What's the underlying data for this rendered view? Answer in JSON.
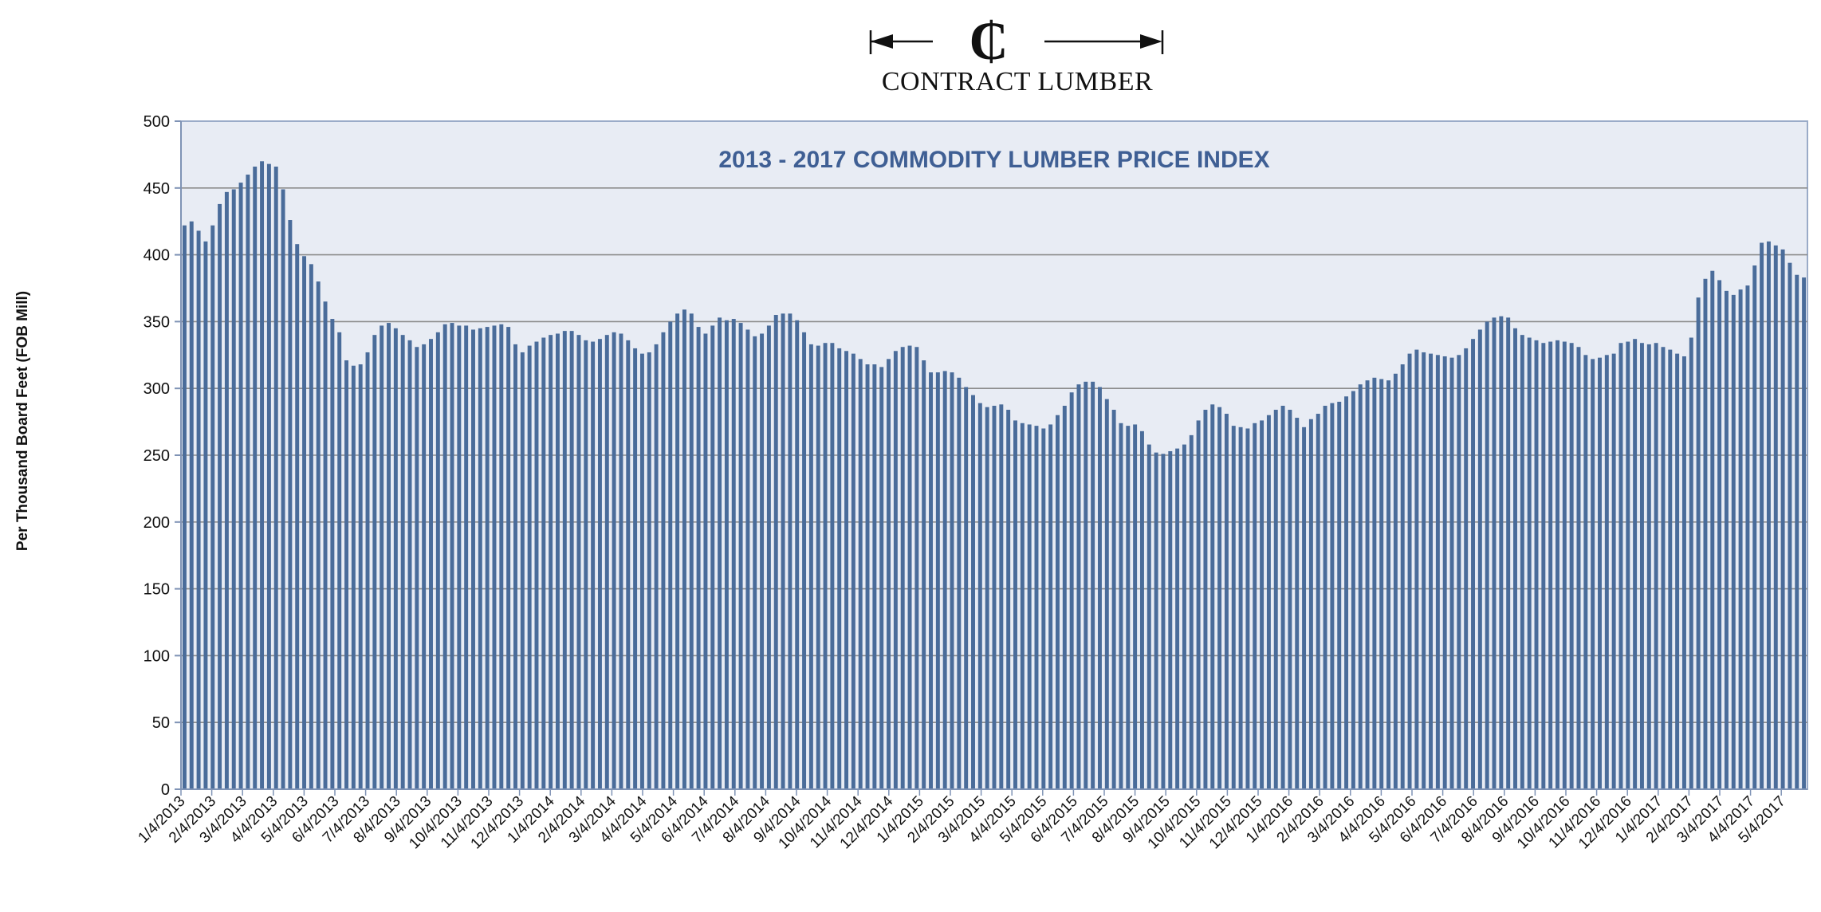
{
  "logo": {
    "symbol": "₵",
    "text": "CONTRACT LUMBER",
    "icon": "cent-arrows-logo"
  },
  "colors": {
    "plot_bg": "#e8ecf4",
    "bar": "#4a6c9a",
    "grid": "#8c8c8c",
    "title": "#3f5f94",
    "axis": "#7f93b5"
  },
  "chart_data": {
    "type": "bar",
    "title": "2013 - 2017 COMMODITY LUMBER PRICE INDEX",
    "xlabel": "",
    "ylabel": "Per Thousand Board Feet (FOB Mill)",
    "ylim": [
      0,
      500
    ],
    "yticks": [
      0,
      50,
      100,
      150,
      200,
      250,
      300,
      350,
      400,
      450,
      500
    ],
    "grid": true,
    "legend": "none",
    "x_tick_labels": [
      "1/4/2013",
      "2/4/2013",
      "3/4/2013",
      "4/4/2013",
      "5/4/2013",
      "6/4/2013",
      "7/4/2013",
      "8/4/2013",
      "9/4/2013",
      "10/4/2013",
      "11/4/2013",
      "12/4/2013",
      "1/4/2014",
      "2/4/2014",
      "3/4/2014",
      "4/4/2014",
      "5/4/2014",
      "6/4/2014",
      "7/4/2014",
      "8/4/2014",
      "9/4/2014",
      "10/4/2014",
      "11/4/2014",
      "12/4/2014",
      "1/4/2015",
      "2/4/2015",
      "3/4/2015",
      "4/4/2015",
      "5/4/2015",
      "6/4/2015",
      "7/4/2015",
      "8/4/2015",
      "9/4/2015",
      "10/4/2015",
      "11/4/2015",
      "12/4/2015",
      "1/4/2016",
      "2/4/2016",
      "3/4/2016",
      "4/4/2016",
      "5/4/2016",
      "6/4/2016",
      "7/4/2016",
      "8/4/2016",
      "9/4/2016",
      "10/4/2016",
      "11/4/2016",
      "12/4/2016",
      "1/4/2017",
      "2/4/2017",
      "3/4/2017",
      "4/4/2017",
      "5/4/2017"
    ],
    "values": [
      422,
      425,
      418,
      410,
      422,
      438,
      447,
      449,
      454,
      460,
      466,
      470,
      468,
      466,
      449,
      426,
      408,
      399,
      393,
      380,
      365,
      352,
      342,
      321,
      317,
      318,
      327,
      340,
      347,
      349,
      345,
      340,
      336,
      331,
      333,
      337,
      342,
      348,
      349,
      347,
      347,
      344,
      345,
      346,
      347,
      348,
      346,
      333,
      327,
      332,
      335,
      338,
      340,
      341,
      343,
      343,
      340,
      336,
      335,
      337,
      340,
      342,
      341,
      336,
      330,
      326,
      327,
      333,
      342,
      350,
      356,
      359,
      356,
      346,
      341,
      347,
      353,
      351,
      352,
      349,
      344,
      339,
      341,
      347,
      355,
      356,
      356,
      351,
      342,
      333,
      332,
      334,
      334,
      330,
      328,
      326,
      322,
      318,
      318,
      316,
      322,
      328,
      331,
      332,
      331,
      321,
      312,
      312,
      313,
      312,
      308,
      301,
      295,
      289,
      286,
      287,
      288,
      284,
      276,
      274,
      273,
      272,
      270,
      273,
      280,
      287,
      297,
      303,
      305,
      305,
      301,
      292,
      284,
      274,
      272,
      273,
      268,
      258,
      252,
      251,
      253,
      255,
      258,
      265,
      276,
      284,
      288,
      286,
      281,
      272,
      271,
      270,
      274,
      276,
      280,
      284,
      287,
      284,
      278,
      271,
      277,
      281,
      287,
      289,
      290,
      294,
      298,
      303,
      306,
      308,
      307,
      306,
      311,
      318,
      326,
      329,
      327,
      326,
      325,
      324,
      323,
      325,
      330,
      337,
      344,
      350,
      353,
      354,
      353,
      345,
      340,
      338,
      336,
      334,
      335,
      336,
      335,
      334,
      331,
      325,
      322,
      323,
      325,
      326,
      334,
      335,
      337,
      334,
      333,
      334,
      331,
      329,
      326,
      324,
      338,
      368,
      382,
      388,
      381,
      373,
      370,
      374,
      377,
      392,
      409,
      410,
      407,
      404,
      394,
      385,
      383
    ]
  }
}
